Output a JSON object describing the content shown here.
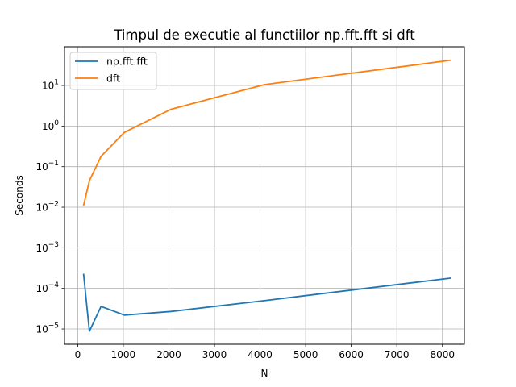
{
  "chart_data": {
    "type": "line",
    "title": "Timpul de executie al functiilor np.fft.fft si dft",
    "xlabel": "N",
    "ylabel": "Seconds",
    "yscale": "log",
    "xlim": [
      -290,
      8482
    ],
    "ylim": [
      4.2e-06,
      90
    ],
    "grid": true,
    "legend_position": "top-left",
    "xticks": [
      0,
      1000,
      2000,
      3000,
      4000,
      5000,
      6000,
      7000,
      8000
    ],
    "xtick_labels": [
      "0",
      "1000",
      "2000",
      "3000",
      "4000",
      "5000",
      "6000",
      "7000",
      "8000"
    ],
    "yticks": [
      {
        "value": 1e-05,
        "base": "10",
        "exp": "−5"
      },
      {
        "value": 0.0001,
        "base": "10",
        "exp": "−4"
      },
      {
        "value": 0.001,
        "base": "10",
        "exp": "−3"
      },
      {
        "value": 0.01,
        "base": "10",
        "exp": "−2"
      },
      {
        "value": 0.1,
        "base": "10",
        "exp": "−1"
      },
      {
        "value": 1,
        "base": "10",
        "exp": "0"
      },
      {
        "value": 10,
        "base": "10",
        "exp": "1"
      }
    ],
    "x": [
      128,
      256,
      512,
      1024,
      2048,
      4096,
      8192
    ],
    "series": [
      {
        "name": "np.fft.fft",
        "color": "#1f77b4",
        "values": [
          0.00023,
          8.8e-06,
          3.6e-05,
          2.2e-05,
          2.7e-05,
          5e-05,
          0.00018
        ]
      },
      {
        "name": "dft",
        "color": "#ff7f0e",
        "values": [
          0.011,
          0.045,
          0.18,
          0.7,
          2.6,
          10.5,
          42
        ]
      }
    ]
  }
}
